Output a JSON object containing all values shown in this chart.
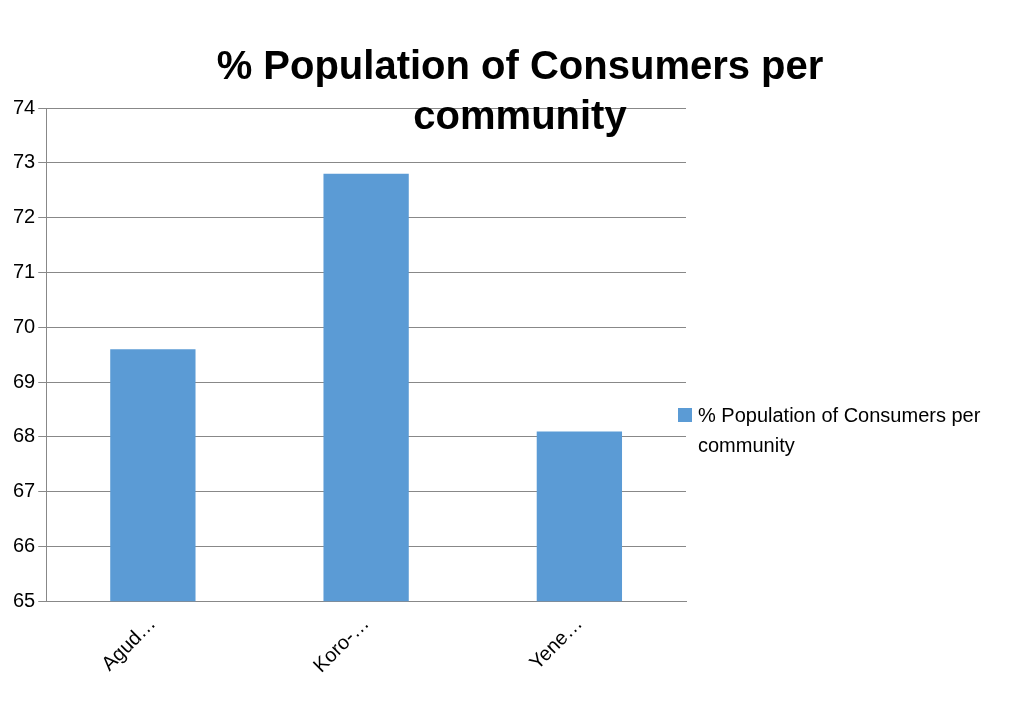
{
  "chart_data": {
    "type": "bar",
    "title": "% Population of Consumers  per community",
    "categories": [
      "Agud…",
      "Koro-…",
      "Yene…"
    ],
    "series": [
      {
        "name": "% Population of Consumers per community",
        "color": "#5b9bd5",
        "values": [
          69.6,
          72.8,
          68.1
        ]
      }
    ],
    "ylim": [
      65,
      74
    ],
    "yticks": [
      65,
      66,
      67,
      68,
      69,
      70,
      71,
      72,
      73,
      74
    ],
    "grid": "y",
    "legend": "right"
  }
}
